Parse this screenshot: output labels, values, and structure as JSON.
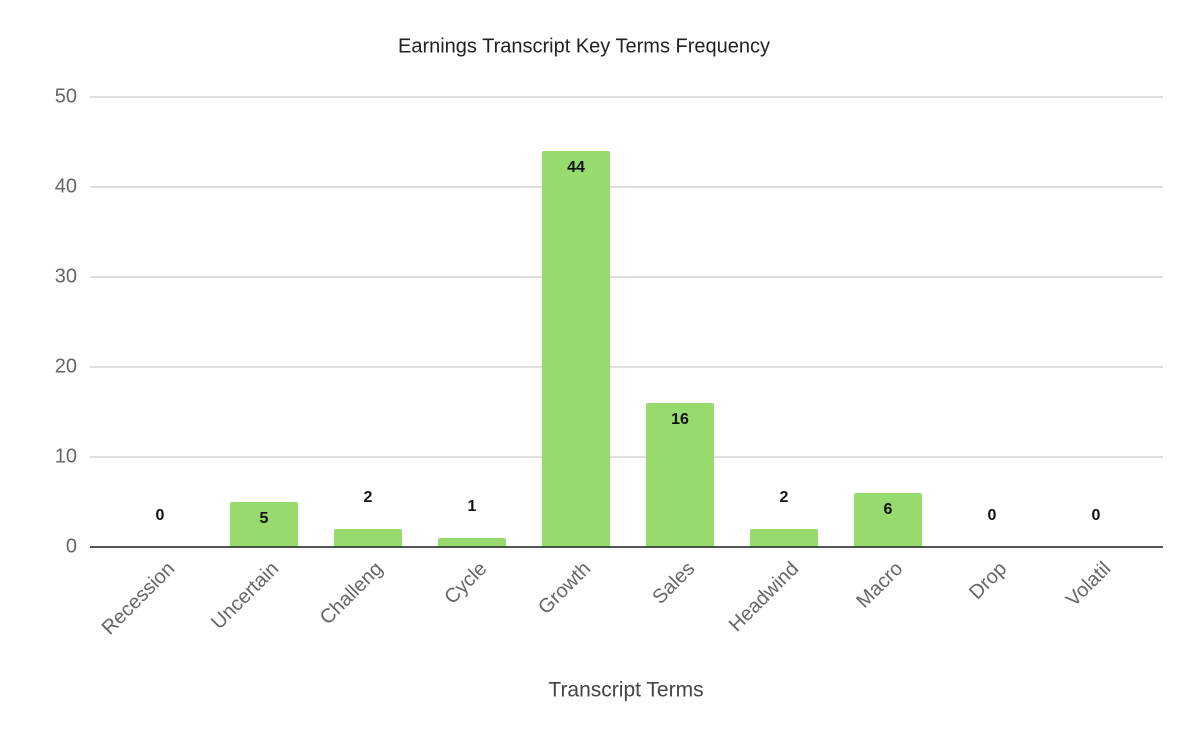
{
  "chart_data": {
    "type": "bar",
    "title": "Earnings Transcript Key Terms Frequency",
    "x_label": "Transcript Terms",
    "categories": [
      "Recession",
      "Uncertain",
      "Challeng",
      "Cycle",
      "Growth",
      "Sales",
      "Headwind",
      "Macro",
      "Drop",
      "Volatil"
    ],
    "values": [
      0,
      5,
      2,
      1,
      44,
      16,
      2,
      6,
      0,
      0
    ],
    "color": "#97db6e",
    "ylim": [
      0,
      50
    ],
    "yticks": [
      0,
      10,
      20,
      30,
      40,
      50
    ],
    "grid": true
  }
}
